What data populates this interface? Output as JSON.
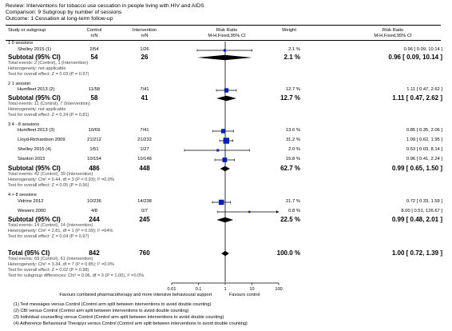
{
  "header": {
    "review": "Review:   Interventions for tobacco use cessation in people living with HIV and AIDS",
    "comparison": "Comparison:   9 Subgroup by number of sessions",
    "outcome": "Outcome:   1 Cessation at long-term follow-up"
  },
  "columns": {
    "study": "Study or subgroup",
    "control": "Control",
    "control_sub": "n/N",
    "intervention": "Intervention",
    "intervention_sub": "n/N",
    "rr": "Risk Ratio",
    "rr_sub": "M-H,Fixed,95% CI",
    "weight": "Weight",
    "rr2": "Risk Ratio",
    "rr2_sub": "M-H,Fixed,95% CI"
  },
  "groups": [
    {
      "title": "1 0 sessions",
      "studies": [
        {
          "name": "Shelley 2015 (1)",
          "control": "2/54",
          "intervention": "1/26",
          "weight": "2.1 %",
          "ci": "0.96 [ 0.09, 10.14 ]",
          "rr": 0.96,
          "lo": 0.09,
          "hi": 10.14
        }
      ],
      "subtotal": {
        "label": "Subtotal (95% CI)",
        "control": "54",
        "intervention": "26",
        "weight": "2.1 %",
        "ci": "0.96 [ 0.09, 10.14 ]",
        "rr": 0.96,
        "lo": 0.09,
        "hi": 10.14
      },
      "notes": [
        "Total events: 2 (Control), 1 (Intervention)",
        "Heterogeneity: not applicable",
        "Test for overall effect: Z = 0.03 (P = 0.97)"
      ]
    },
    {
      "title": "2 1 session",
      "studies": [
        {
          "name": "Humfleet 2013 (2)",
          "control": "11/58",
          "intervention": "7/41",
          "weight": "12.7 %",
          "ci": "1.11 [ 0.47, 2.62 ]",
          "rr": 1.11,
          "lo": 0.47,
          "hi": 2.62
        }
      ],
      "subtotal": {
        "label": "Subtotal (95% CI)",
        "control": "58",
        "intervention": "41",
        "weight": "12.7 %",
        "ci": "1.11 [ 0.47, 2.62 ]",
        "rr": 1.11,
        "lo": 0.47,
        "hi": 2.62
      },
      "notes": [
        "Total events: 11 (Control), 7 (Intervention)",
        "Heterogeneity: not applicable",
        "Test for overall effect: Z = 0.24 (P = 0.81)"
      ]
    },
    {
      "title": "3 4 - 8 sessions",
      "studies": [
        {
          "name": "Humfleet 2013 (3)",
          "control": "10/69",
          "intervention": "7/41",
          "weight": "13.6 %",
          "ci": "0.85 [ 0.35, 2.06 ]",
          "rr": 0.85,
          "lo": 0.35,
          "hi": 2.06
        },
        {
          "name": "Lloyd-Richardson 2009",
          "control": "21/212",
          "intervention": "21/232",
          "weight": "31.2 %",
          "ci": "1.09 [ 0.62, 1.95 ]",
          "rr": 1.09,
          "lo": 0.62,
          "hi": 1.95
        },
        {
          "name": "Shelley 2015 (4)",
          "control": "1/51",
          "intervention": "1/27",
          "weight": "2.0 %",
          "ci": "0.53 [ 0.03, 8.14 ]",
          "rr": 0.53,
          "lo": 0.03,
          "hi": 8.14
        },
        {
          "name": "Stanton 2015",
          "control": "10/154",
          "intervention": "10/148",
          "weight": "15.8 %",
          "ci": "0.96 [ 0.41, 2.24 ]",
          "rr": 0.96,
          "lo": 0.41,
          "hi": 2.24
        }
      ],
      "subtotal": {
        "label": "Subtotal (95% CI)",
        "control": "486",
        "intervention": "448",
        "weight": "62.7 %",
        "ci": "0.99 [ 0.65, 1.50 ]",
        "rr": 0.99,
        "lo": 0.65,
        "hi": 1.5
      },
      "notes": [
        "Total events: 42 (Control), 39 (Intervention)",
        "Heterogeneity: Chi² = 0.44, df = 3 (P = 0.93); I² =0.0%",
        "Test for overall effect: Z = 0.05 (P = 0.96)"
      ]
    },
    {
      "title": "4 > 8 sessions",
      "studies": [
        {
          "name": "Vidrine 2012",
          "control": "10/236",
          "intervention": "14/238",
          "weight": "21.7 %",
          "ci": "0.72 [ 0.33, 1.59 ]",
          "rr": 0.72,
          "lo": 0.33,
          "hi": 1.59
        },
        {
          "name": "Wewers 2000",
          "control": "4/8",
          "intervention": "0/7",
          "weight": "0.8 %",
          "ci": "8.00 [ 0.51, 126.67 ]",
          "rr": 8.0,
          "lo": 0.51,
          "hi": 126.67
        }
      ],
      "subtotal": {
        "label": "Subtotal (95% CI)",
        "control": "244",
        "intervention": "245",
        "weight": "22.5 %",
        "ci": "0.99 [ 0.48, 2.01 ]",
        "rr": 0.99,
        "lo": 0.48,
        "hi": 2.01
      },
      "notes": [
        "Total events: 14 (Control), 14 (Intervention)",
        "Heterogeneity: Chi² = 2.81, df = 1 (P = 0.09); I² =64%",
        "Test for overall effect: Z = 0.04 (P = 0.97)"
      ]
    }
  ],
  "total": {
    "label": "Total (95% CI)",
    "control": "842",
    "intervention": "760",
    "weight": "100.0 %",
    "ci": "1.00 [ 0.72, 1.39 ]",
    "rr": 1.0,
    "lo": 0.72,
    "hi": 1.39,
    "notes": [
      "Total events: 69 (Control), 61 (Intervention)",
      "Heterogeneity: Chi² = 3.34, df = 7 (P = 0.85); I² =0.0%",
      "Test for overall effect: Z = 0.02 (P = 0.98)",
      "Test for subgroup differences: Chi² = 0.06, df = 3 (P = 1.00), I² =0.0%"
    ]
  },
  "axis": {
    "ticks": [
      {
        "v": 0.01,
        "label": "0.01"
      },
      {
        "v": 0.1,
        "label": "0.1"
      },
      {
        "v": 1,
        "label": "1"
      },
      {
        "v": 10,
        "label": "10"
      },
      {
        "v": 100,
        "label": "100"
      }
    ],
    "favours_left": "Favours combined pharmacotherapy and more intensive behavioural support",
    "favours_right": "Favours control",
    "scale": "log",
    "xlim": [
      0.01,
      100
    ]
  },
  "footnotes": [
    "(1) Text messages versus Control (Control arm split between interventions to avoid double counting)",
    "(2) CBI versus Control (Control arm split between interventions to avoid double counting)",
    "(3) Individual counselling versus Control (Control arm split between interventions to avoid double counting)",
    "(4) Adherence Behavioural Therapys versus Control (Control arm split between interventions to avoid double counting)"
  ],
  "colors": {
    "study_box": "#0a1fb5",
    "line": "#000000"
  }
}
